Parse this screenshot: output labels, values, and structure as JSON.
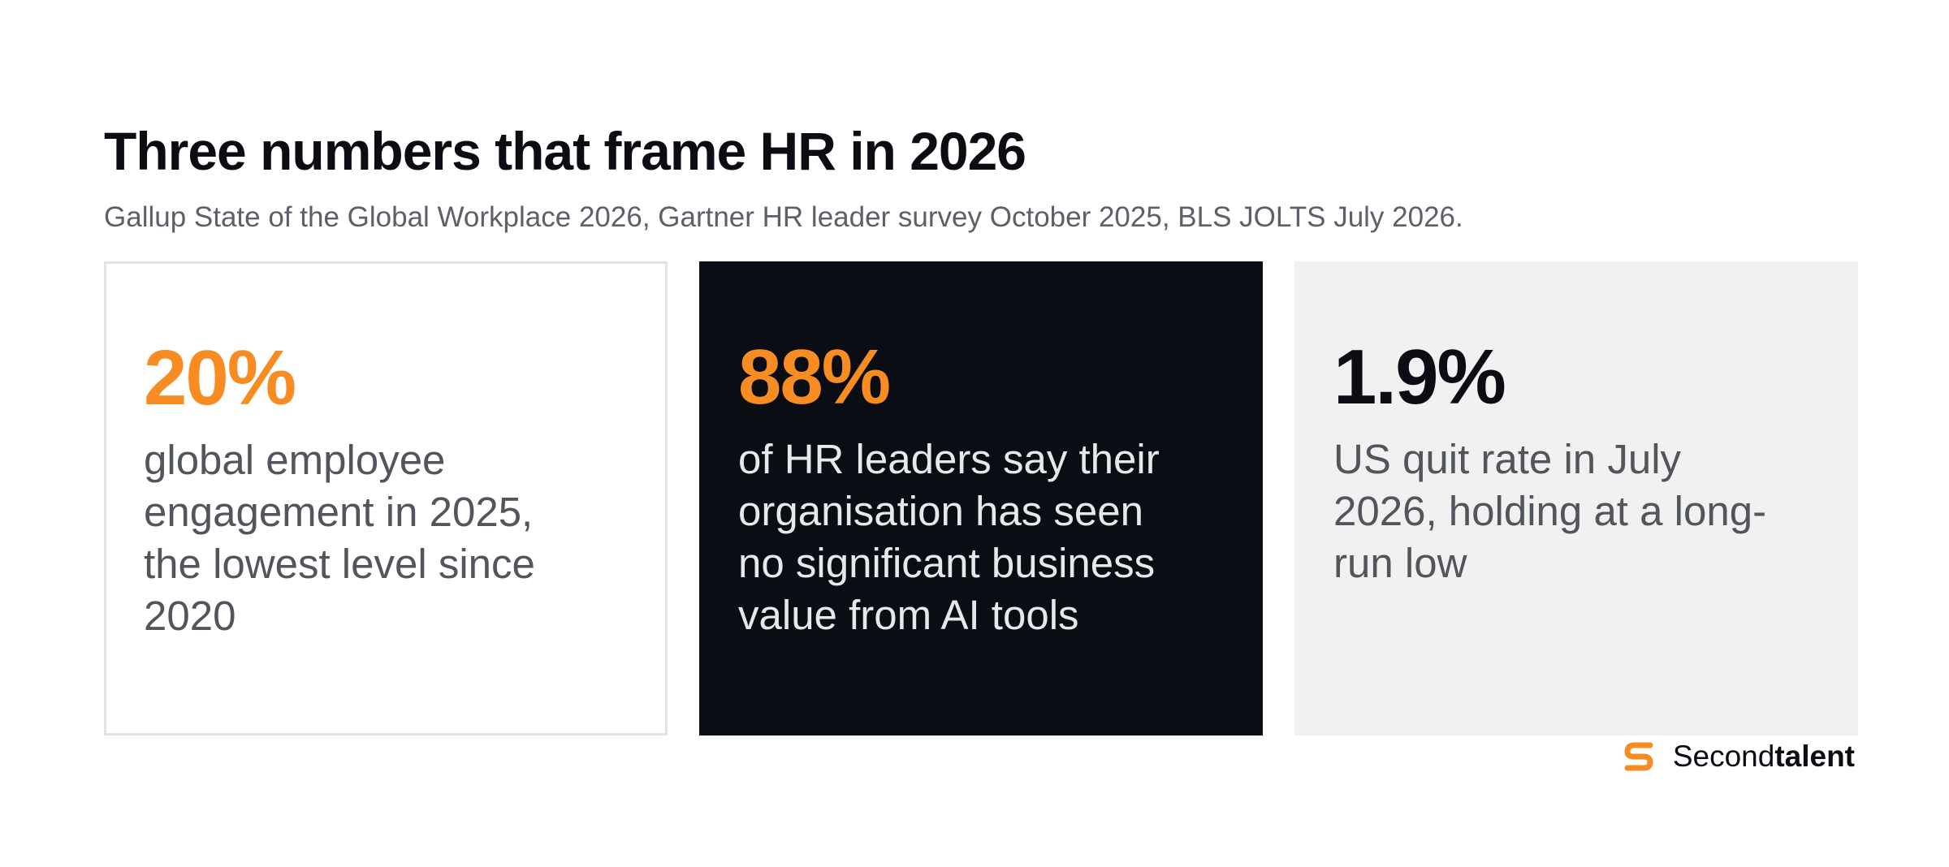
{
  "header": {
    "title": "Three numbers that frame HR in 2026",
    "subtitle": "Gallup State of the Global Workplace 2026, Gartner HR leader survey October 2025, BLS JOLTS July 2026."
  },
  "cards": [
    {
      "value": "20%",
      "description": "global employee engagement in 2025, the lowest level since 2020"
    },
    {
      "value": "88%",
      "description": "of HR leaders say their organisation has seen no significant business value from AI tools"
    },
    {
      "value": "1.9%",
      "description": "US quit rate in July 2026, holding at a long-run low"
    }
  ],
  "brand": {
    "name_regular": "Second",
    "name_bold": "talent",
    "icon": "secondtalent-logo-icon"
  },
  "colors": {
    "accent": "#f68c22",
    "dark_card": "#0a0d14",
    "light_card": "#f0f1f0",
    "text_dark": "#0b0d12",
    "text_muted": "#5d6068"
  }
}
